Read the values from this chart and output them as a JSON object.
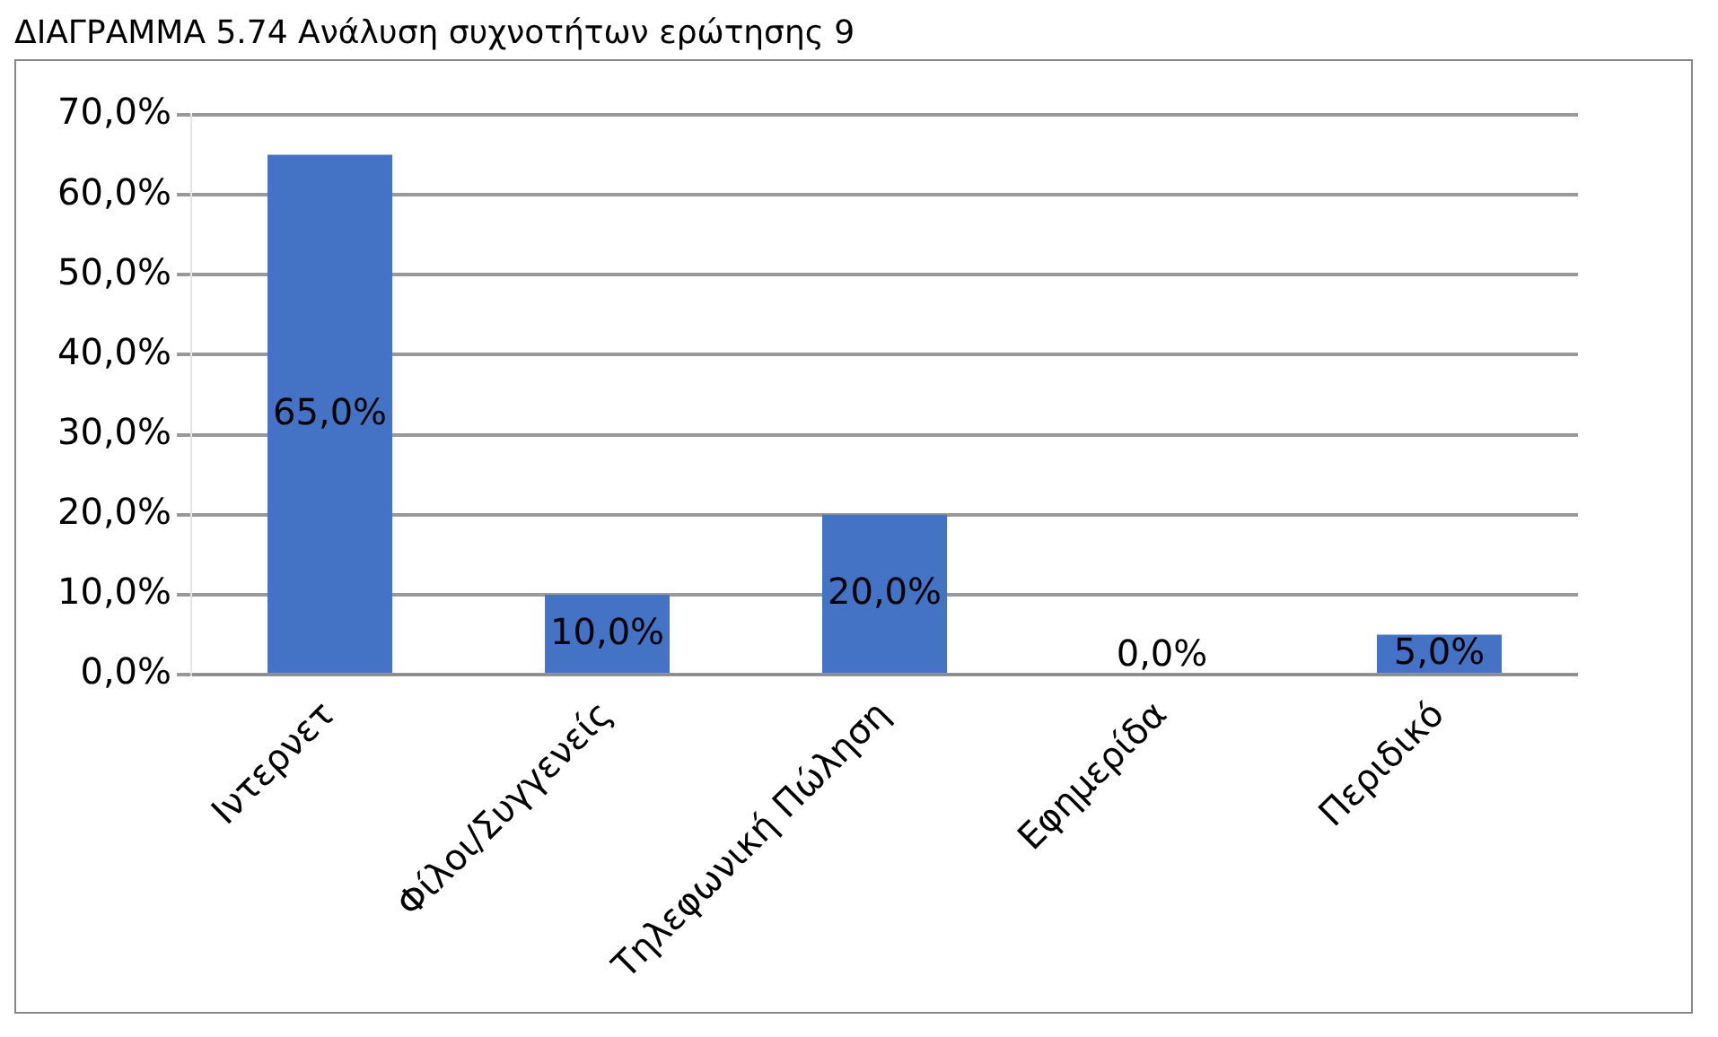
{
  "chart_data": {
    "type": "bar",
    "title": "ΔΙΑΓΡΑΜΜΑ 5.74 Ανάλυση συχνοτήτων ερώτησης 9",
    "categories": [
      "Ιντερνετ",
      "Φίλοι/Συγγενείς",
      "Τηλεφωνική Πώληση",
      "Εφημερίδα",
      "Περιδικό"
    ],
    "values": [
      65,
      10,
      20,
      0,
      5
    ],
    "value_labels": [
      "65,0%",
      "10,0%",
      "20,0%",
      "0,0%",
      "5,0%"
    ],
    "color": "#4472c4",
    "ylim": [
      0,
      70
    ],
    "yticks": [
      {
        "value": 0,
        "label": "0,0%"
      },
      {
        "value": 10,
        "label": "10,0%"
      },
      {
        "value": 20,
        "label": "20,0%"
      },
      {
        "value": 30,
        "label": "30,0%"
      },
      {
        "value": 40,
        "label": "40,0%"
      },
      {
        "value": 50,
        "label": "50,0%"
      },
      {
        "value": 60,
        "label": "60,0%"
      },
      {
        "value": 70,
        "label": "70,0%"
      }
    ],
    "grid": "y"
  }
}
